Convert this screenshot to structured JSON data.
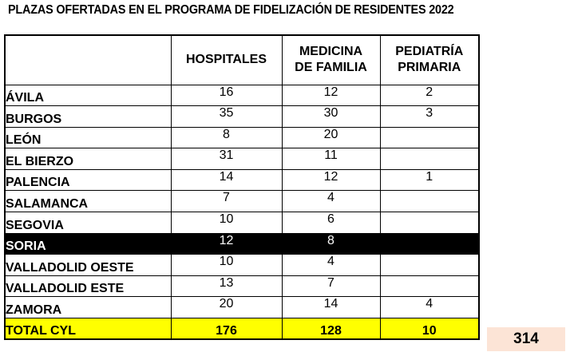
{
  "title": "PLAZAS OFERTADAS EN EL PROGRAMA DE FIDELIZACIÓN DE RESIDENTES 2022",
  "table": {
    "headers": [
      "",
      "HOSPITALES",
      "MEDICINA DE FAMILIA",
      "PEDIATRÍA PRIMARIA"
    ],
    "header_lines": {
      "hospitales": "HOSPITALES",
      "medicina_1": "MEDICINA",
      "medicina_2": "DE FAMILIA",
      "pediatria_1": "PEDIATRÍA",
      "pediatria_2": "PRIMARIA"
    },
    "rows": [
      {
        "name": "ÁVILA",
        "hospitales": "16",
        "medicina": "12",
        "pediatria": "2"
      },
      {
        "name": "BURGOS",
        "hospitales": "35",
        "medicina": "30",
        "pediatria": "3"
      },
      {
        "name": "LEÓN",
        "hospitales": "8",
        "medicina": "20",
        "pediatria": ""
      },
      {
        "name": "EL BIERZO",
        "hospitales": "31",
        "medicina": "11",
        "pediatria": ""
      },
      {
        "name": "PALENCIA",
        "hospitales": "14",
        "medicina": "12",
        "pediatria": "1"
      },
      {
        "name": "SALAMANCA",
        "hospitales": "7",
        "medicina": "4",
        "pediatria": ""
      },
      {
        "name": "SEGOVIA",
        "hospitales": "10",
        "medicina": "6",
        "pediatria": ""
      },
      {
        "name": "SORIA",
        "hospitales": "12",
        "medicina": "8",
        "pediatria": "",
        "highlighted": true
      },
      {
        "name": "VALLADOLID OESTE",
        "hospitales": "10",
        "medicina": "4",
        "pediatria": ""
      },
      {
        "name": "VALLADOLID ESTE",
        "hospitales": "13",
        "medicina": "7",
        "pediatria": ""
      },
      {
        "name": "ZAMORA",
        "hospitales": "20",
        "medicina": "14",
        "pediatria": "4"
      }
    ],
    "total": {
      "name": "TOTAL CYL",
      "hospitales": "176",
      "medicina": "128",
      "pediatria": "10"
    },
    "grand_total": "314"
  },
  "colors": {
    "total_row_bg": "#ffff00",
    "grand_total_bg": "#fce4d6",
    "highlight_row_bg": "#000000",
    "highlight_row_text": "#ffffff"
  }
}
